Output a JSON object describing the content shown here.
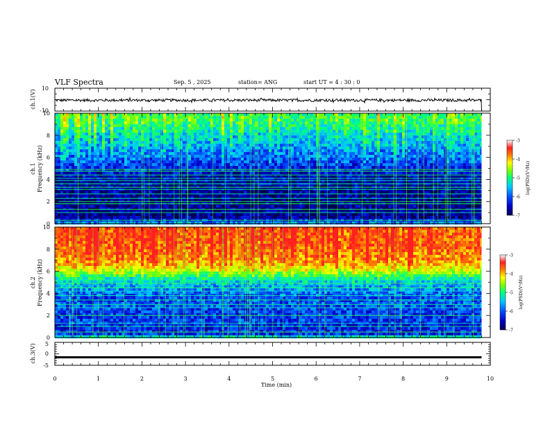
{
  "header": {
    "title": "VLF Spectra",
    "date": "Sep. 5 , 2025",
    "station": "station= ANG",
    "start": "start UT = 4 : 30 : 0"
  },
  "colors": {
    "colormap": [
      "#000050",
      "#0000c8",
      "#0050ff",
      "#00c8ff",
      "#00ff80",
      "#80ff00",
      "#ffff00",
      "#ff8000",
      "#ff2020",
      "#ffffff"
    ],
    "waveform": "#000000",
    "axis": "#000000"
  },
  "chart_data": [
    {
      "type": "line",
      "name": "ch1-waveform",
      "ylabel": "ch.1(V)",
      "ylim": [
        -10,
        10
      ],
      "yticks": [
        10,
        -10
      ],
      "x": [
        0,
        9.8
      ],
      "series": [
        {
          "name": "ch.1",
          "values": [
            -0.5,
            -0.5
          ]
        }
      ],
      "noise_amplitude": 1.2,
      "end_drop_to": -10
    },
    {
      "type": "heatmap",
      "name": "ch1-spectrogram",
      "ylabel_line1": "ch.1",
      "ylabel_line2": "Frequency (kHz)",
      "ylim": [
        0,
        10
      ],
      "yticks": [
        "0",
        "2",
        "4",
        "6",
        "8",
        "10"
      ],
      "x_end": 9.8,
      "colorbar": {
        "label": "log(PSD)(V²/Hz)",
        "range": [
          -7,
          -3
        ],
        "ticks": [
          "-3",
          "-4",
          "-5",
          "-6",
          "-7"
        ]
      },
      "profile": [
        {
          "f": 0.0,
          "v": -5.6
        },
        {
          "f": 0.5,
          "v": -6.7
        },
        {
          "f": 1.0,
          "v": -6.8
        },
        {
          "f": 1.5,
          "v": -6.7
        },
        {
          "f": 2.0,
          "v": -6.8
        },
        {
          "f": 2.5,
          "v": -6.7
        },
        {
          "f": 3.0,
          "v": -6.7
        },
        {
          "f": 3.5,
          "v": -6.6
        },
        {
          "f": 4.0,
          "v": -6.7
        },
        {
          "f": 4.5,
          "v": -6.5
        },
        {
          "f": 5.0,
          "v": -6.3
        },
        {
          "f": 5.5,
          "v": -6.1
        },
        {
          "f": 6.0,
          "v": -5.9
        },
        {
          "f": 6.5,
          "v": -5.8
        },
        {
          "f": 7.0,
          "v": -5.6
        },
        {
          "f": 7.5,
          "v": -5.5
        },
        {
          "f": 8.0,
          "v": -5.4
        },
        {
          "f": 8.5,
          "v": -5.2
        },
        {
          "f": 9.0,
          "v": -5.0
        },
        {
          "f": 9.5,
          "v": -4.9
        },
        {
          "f": 10.0,
          "v": -4.9
        }
      ],
      "line_freqs_khz": [
        0.3,
        1.0,
        1.3,
        1.8,
        2.0,
        2.3,
        2.7,
        3.1,
        3.3,
        3.6,
        3.9,
        4.1,
        4.4,
        4.75,
        4.9
      ],
      "line_level": -5.1
    },
    {
      "type": "heatmap",
      "name": "ch2-spectrogram",
      "ylabel_line1": "ch.2",
      "ylabel_line2": "Frequency (kHz)",
      "ylim": [
        0,
        10
      ],
      "yticks": [
        "0",
        "2",
        "4",
        "6",
        "8",
        "10"
      ],
      "x_end": 9.8,
      "colorbar": {
        "label": "log(PSD)(V²/Hz)",
        "range": [
          -7,
          -3
        ],
        "ticks": [
          "-3",
          "-4",
          "-5",
          "-6",
          "-7"
        ]
      },
      "profile": [
        {
          "f": 0.0,
          "v": -5.0
        },
        {
          "f": 0.3,
          "v": -6.2
        },
        {
          "f": 1.0,
          "v": -6.3
        },
        {
          "f": 1.5,
          "v": -6.1
        },
        {
          "f": 2.0,
          "v": -6.2
        },
        {
          "f": 2.5,
          "v": -6.1
        },
        {
          "f": 3.0,
          "v": -6.0
        },
        {
          "f": 3.5,
          "v": -6.1
        },
        {
          "f": 4.0,
          "v": -5.9
        },
        {
          "f": 4.5,
          "v": -5.7
        },
        {
          "f": 5.0,
          "v": -5.5
        },
        {
          "f": 5.5,
          "v": -5.0
        },
        {
          "f": 6.0,
          "v": -4.3
        },
        {
          "f": 6.5,
          "v": -3.9
        },
        {
          "f": 7.0,
          "v": -3.6
        },
        {
          "f": 7.5,
          "v": -3.5
        },
        {
          "f": 8.0,
          "v": -3.4
        },
        {
          "f": 9.0,
          "v": -3.3
        },
        {
          "f": 10.0,
          "v": -3.3
        }
      ],
      "line_freqs_khz": [
        0.5,
        1.0,
        1.3,
        2.0,
        2.7,
        3.0,
        3.4,
        3.8,
        4.2,
        4.5,
        4.9,
        5.2
      ],
      "line_level": -5.0
    },
    {
      "type": "line",
      "name": "ch3-waveform",
      "ylabel": "ch.3(V)",
      "xlabel": "Time (min)",
      "xlim": [
        0,
        10
      ],
      "xticks": [
        "0",
        "1",
        "2",
        "3",
        "4",
        "5",
        "6",
        "7",
        "8",
        "9",
        "10"
      ],
      "ylim": [
        -5,
        5
      ],
      "yticks": [
        5,
        0,
        -5
      ],
      "x": [
        0,
        9.8
      ],
      "series": [
        {
          "name": "ch.3",
          "values": [
            -1.5,
            -1.5
          ]
        }
      ]
    }
  ]
}
